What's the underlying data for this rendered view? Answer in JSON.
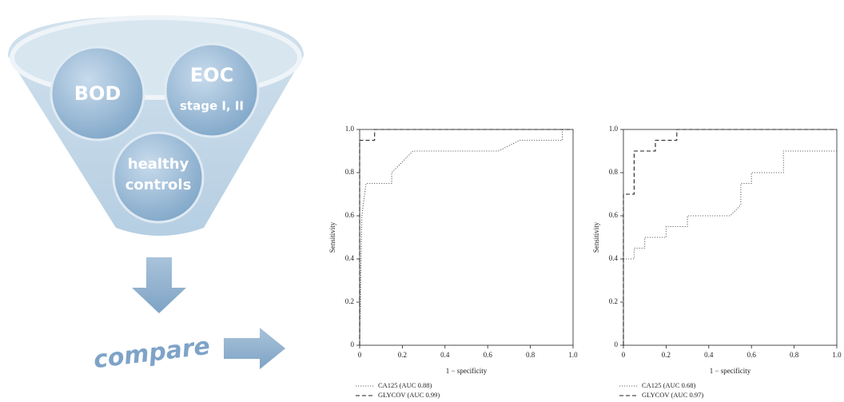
{
  "diagram": {
    "groups": [
      "BOD",
      "EOC",
      "stage I, II",
      "healthy",
      "controls"
    ],
    "action": "compare"
  },
  "chart_data": [
    {
      "type": "line",
      "xlabel": "1 − specificity",
      "ylabel": "Sensitivity",
      "xlim": [
        0,
        1
      ],
      "ylim": [
        0,
        1
      ],
      "xticks": [
        0,
        0.2,
        0.4,
        0.6,
        0.8,
        {
          "value": 1,
          "label": "1.0"
        }
      ],
      "yticks": [
        0,
        0.2,
        0.4,
        0.6,
        0.8,
        {
          "value": 1,
          "label": "1.0"
        }
      ],
      "series": [
        {
          "name": "CA125 (AUC 0.88)",
          "color": "#666666",
          "dash": "dotted",
          "x": [
            0,
            0.01,
            0.03,
            0.15,
            0.15,
            0.2,
            0.25,
            0.65,
            0.75,
            0.95,
            0.95,
            1
          ],
          "values": [
            0,
            0.6,
            0.75,
            0.75,
            0.8,
            0.85,
            0.9,
            0.9,
            0.95,
            0.95,
            1,
            1
          ]
        },
        {
          "name": "GLYCOV (AUC 0.99)",
          "color": "#222222",
          "dash": "dashed",
          "x": [
            0,
            0,
            0.07,
            0.07,
            1
          ],
          "values": [
            0,
            0.95,
            0.95,
            1,
            1
          ]
        }
      ]
    },
    {
      "type": "line",
      "xlabel": "1 − specificity",
      "ylabel": "Sensitivity",
      "xlim": [
        0,
        1
      ],
      "ylim": [
        0,
        1
      ],
      "xticks": [
        0,
        0.2,
        0.4,
        0.6,
        0.8,
        {
          "value": 1,
          "label": "1.0"
        }
      ],
      "yticks": [
        0,
        0.2,
        0.4,
        0.6,
        0.8,
        {
          "value": 1,
          "label": "1.0"
        }
      ],
      "series": [
        {
          "name": "CA125 (AUC 0.68)",
          "color": "#666666",
          "dash": "dotted",
          "x": [
            0,
            0,
            0.05,
            0.05,
            0.1,
            0.1,
            0.2,
            0.2,
            0.3,
            0.3,
            0.5,
            0.55,
            0.55,
            0.6,
            0.6,
            0.75,
            0.75,
            1
          ],
          "values": [
            0,
            0.4,
            0.4,
            0.45,
            0.45,
            0.5,
            0.5,
            0.55,
            0.55,
            0.6,
            0.6,
            0.65,
            0.75,
            0.75,
            0.8,
            0.8,
            0.9,
            0.9
          ]
        },
        {
          "name": "GLYCOV (AUC 0.97)",
          "color": "#222222",
          "dash": "dashed",
          "x": [
            0,
            0,
            0.05,
            0.05,
            0.15,
            0.15,
            0.25,
            0.25,
            1
          ],
          "values": [
            0,
            0.7,
            0.7,
            0.9,
            0.9,
            0.95,
            0.95,
            1,
            1
          ]
        }
      ]
    }
  ]
}
